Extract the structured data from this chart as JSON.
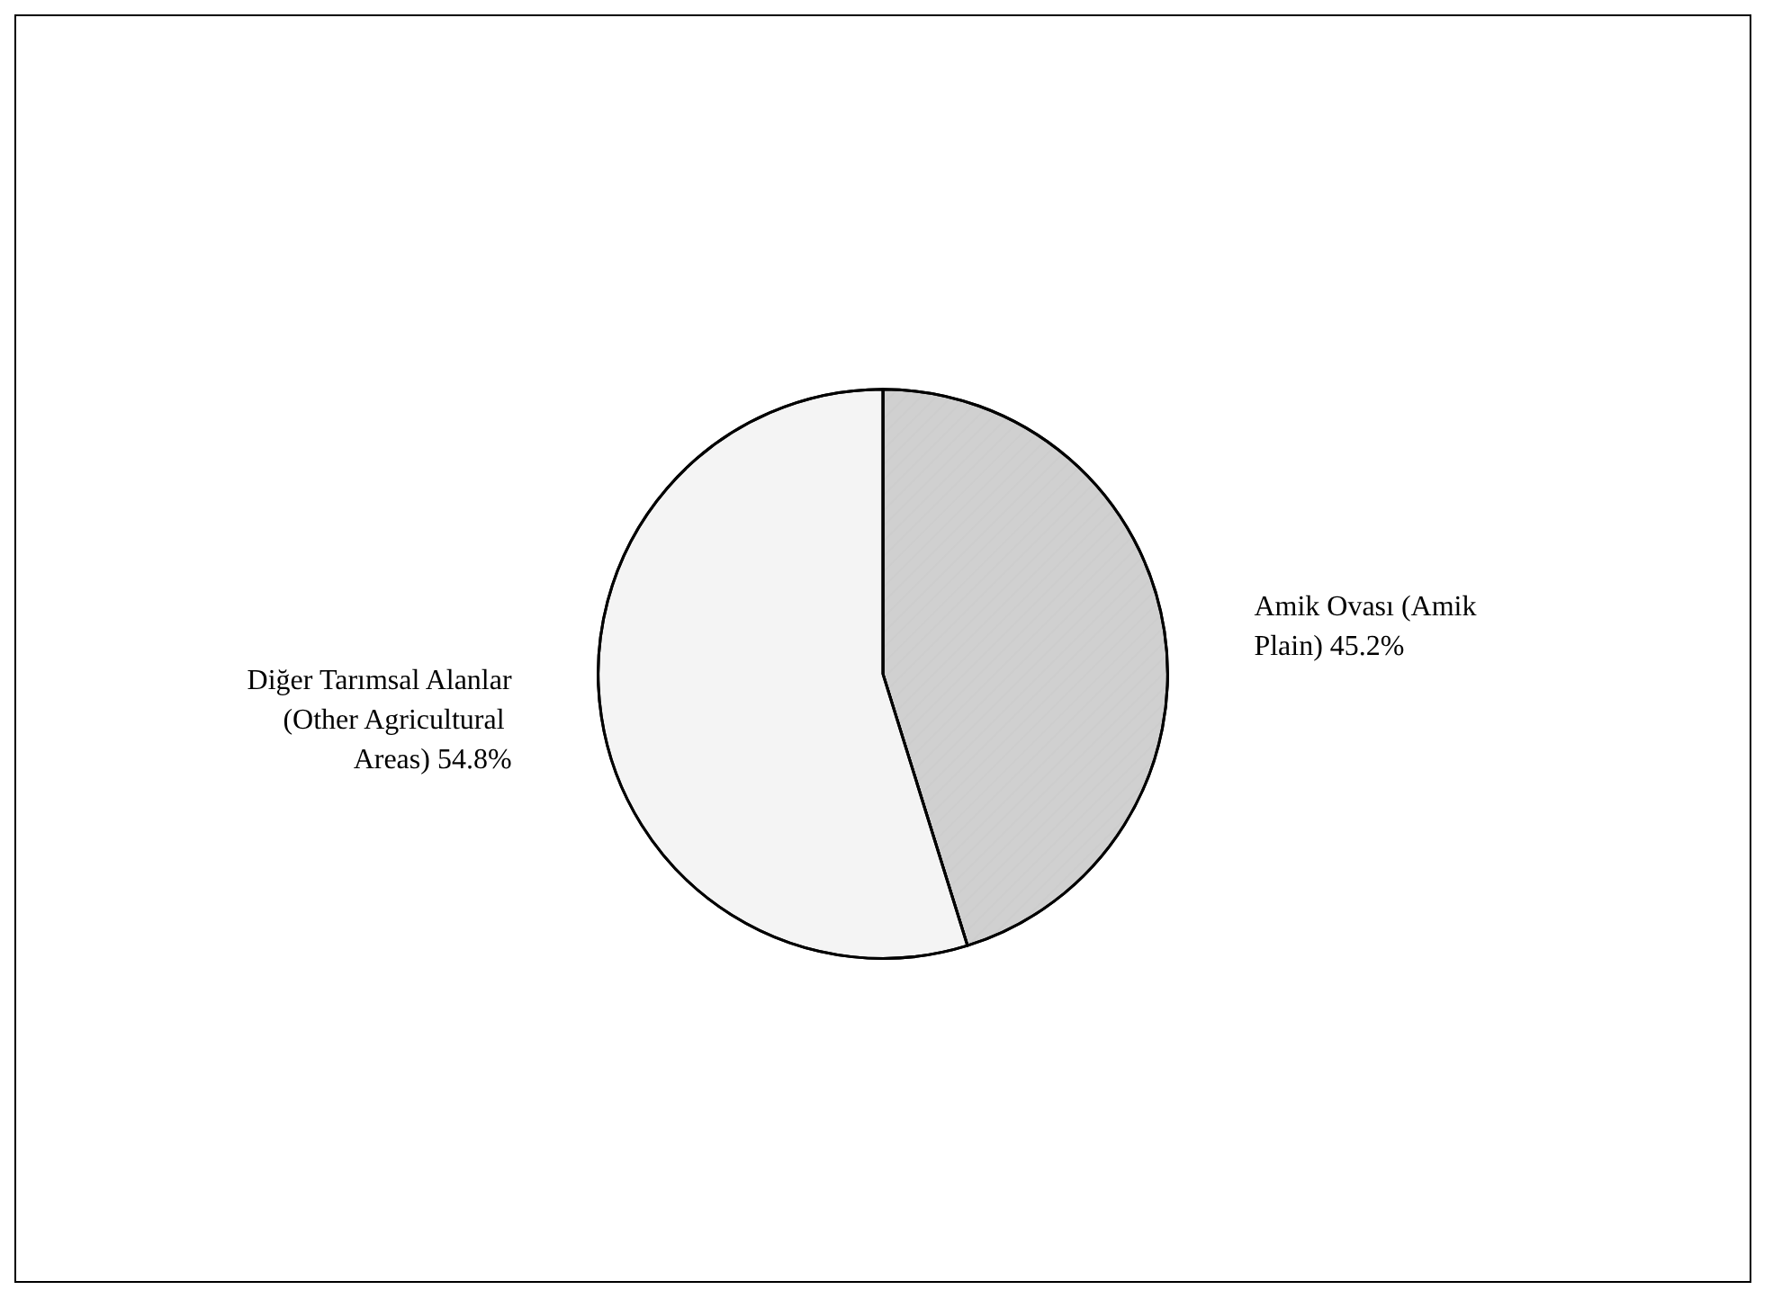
{
  "chart_data": {
    "type": "pie",
    "categories": [
      "Amik Ovası (Amik Plain)",
      "Diğer Tarımsal Alanlar (Other Agricultural Areas)"
    ],
    "values": [
      45.2,
      54.8
    ],
    "colors": [
      "#d0d0d0",
      "#f4f4f4"
    ],
    "value_labels": [
      "45.2%",
      "54.8%"
    ],
    "legend": false
  }
}
